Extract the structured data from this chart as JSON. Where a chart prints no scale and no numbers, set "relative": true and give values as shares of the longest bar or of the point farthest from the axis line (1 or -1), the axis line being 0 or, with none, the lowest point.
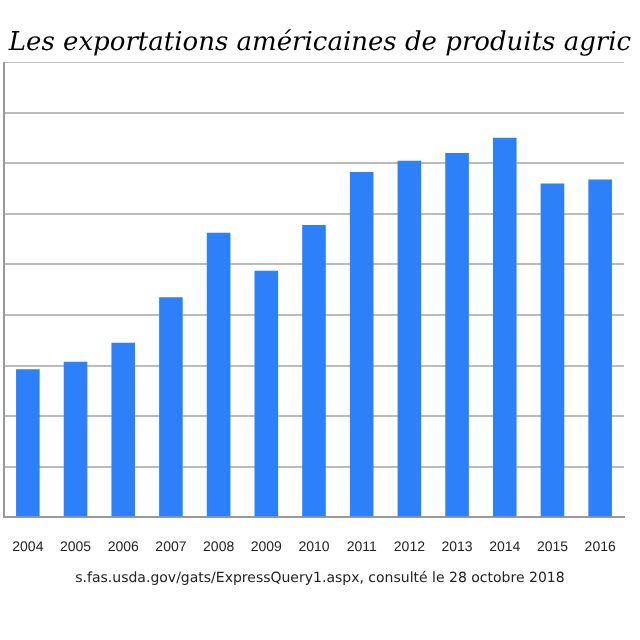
{
  "chart_data": {
    "type": "bar",
    "title": "Les exportations américaines de produits agric",
    "categories": [
      "2004",
      "2005",
      "2006",
      "2007",
      "2008",
      "2009",
      "2010",
      "2011",
      "2012",
      "2013",
      "2014",
      "2015",
      "2016"
    ],
    "values": [
      0.39,
      0.41,
      0.46,
      0.58,
      0.75,
      0.65,
      0.77,
      0.91,
      0.94,
      0.96,
      1,
      0.88,
      0.89
    ],
    "color": "#2e80fa",
    "relative": true,
    "grid": "y",
    "legend": false,
    "annotations": [
      "s.fas.usda.gov/gats/ExpressQuery1.aspx, consulté le 28 octobre 2018"
    ]
  }
}
